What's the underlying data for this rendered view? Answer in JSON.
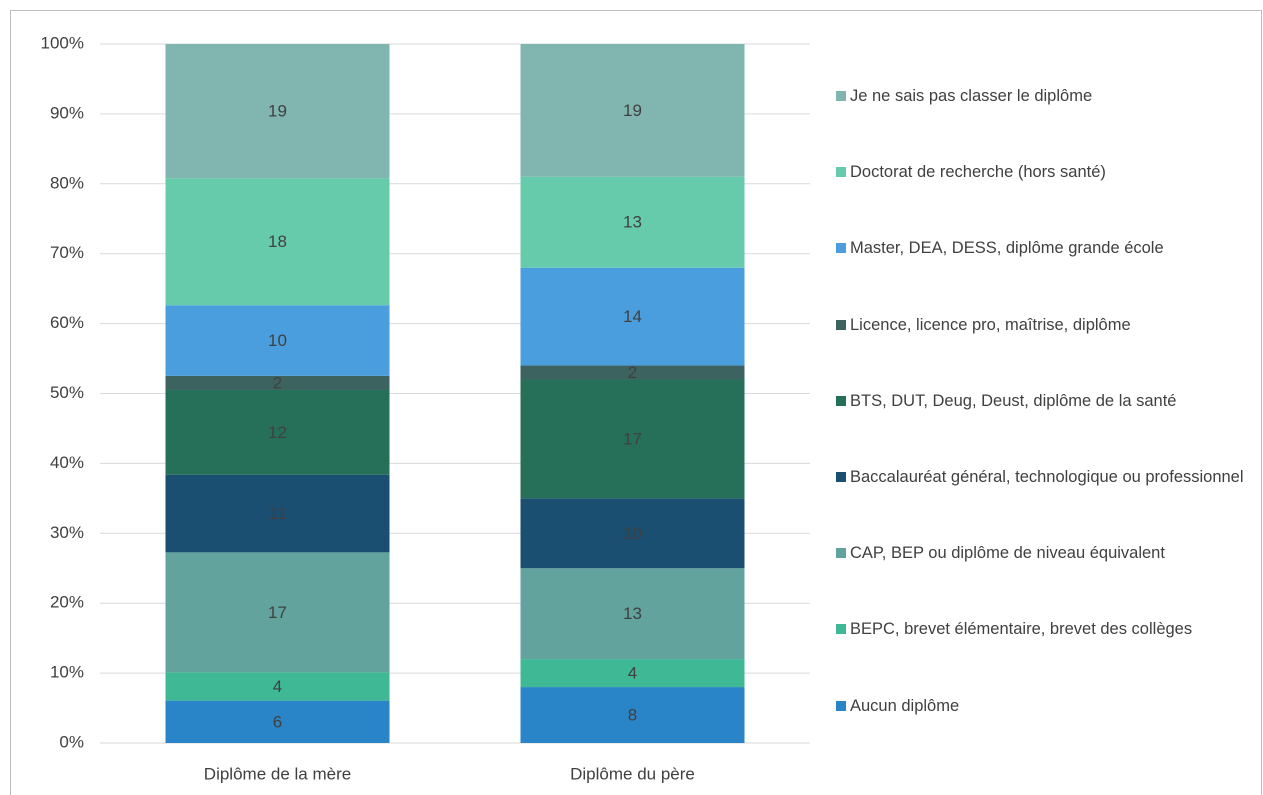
{
  "chart_data": {
    "type": "bar",
    "stacking": "percent",
    "categories": [
      "Diplôme de la mère",
      "Diplôme du père"
    ],
    "series": [
      {
        "name": "Aucun diplôme",
        "color": "#2a84c8",
        "values": [
          6,
          8
        ]
      },
      {
        "name": "BEPC, brevet élémentaire, brevet des collèges",
        "color": "#3fb896",
        "values": [
          4,
          4
        ]
      },
      {
        "name": "CAP, BEP ou diplôme de niveau équivalent",
        "color": "#62a39e",
        "values": [
          17,
          13
        ]
      },
      {
        "name": "Baccalauréat général, technologique ou professionnel",
        "color": "#1b4f72",
        "values": [
          11,
          10
        ]
      },
      {
        "name": "BTS, DUT, Deug, Deust, diplôme de la santé",
        "color": "#26705a",
        "values": [
          12,
          17
        ]
      },
      {
        "name": "Licence, licence pro, maîtrise, diplôme",
        "color": "#3c6360",
        "values": [
          2,
          2
        ]
      },
      {
        "name": "Master, DEA, DESS, diplôme grande école",
        "color": "#4a9ede",
        "values": [
          10,
          14
        ]
      },
      {
        "name": "Doctorat de recherche (hors santé)",
        "color": "#66cbab",
        "values": [
          18,
          13
        ]
      },
      {
        "name": "Je ne sais pas classer le diplôme",
        "color": "#80b5b0",
        "values": [
          19,
          19
        ]
      }
    ],
    "ylim": [
      0,
      100
    ],
    "yticks": [
      {
        "value": 0,
        "label": "0%"
      },
      {
        "value": 10,
        "label": "10%"
      },
      {
        "value": 20,
        "label": "20%"
      },
      {
        "value": 30,
        "label": "30%"
      },
      {
        "value": 40,
        "label": "40%"
      },
      {
        "value": 50,
        "label": "50%"
      },
      {
        "value": 60,
        "label": "60%"
      },
      {
        "value": 70,
        "label": "70%"
      },
      {
        "value": 80,
        "label": "80%"
      },
      {
        "value": 90,
        "label": "90%"
      },
      {
        "value": 100,
        "label": "100%"
      }
    ],
    "grid": true,
    "legend": "right",
    "data_labels": true
  }
}
